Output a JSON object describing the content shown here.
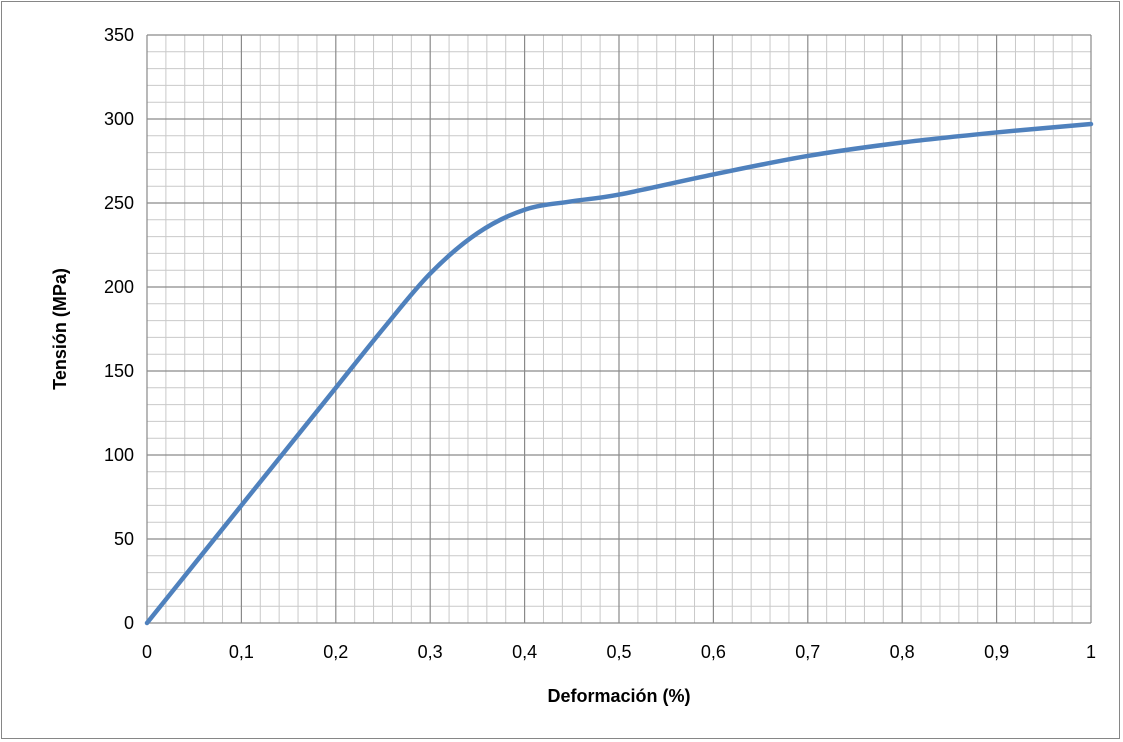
{
  "chart_data": {
    "type": "line",
    "title": "",
    "xlabel": "Deformación (%)",
    "ylabel": "Tensión (MPa)",
    "xlim": [
      0,
      1
    ],
    "ylim": [
      0,
      350
    ],
    "x_ticks": [
      0,
      0.1,
      0.2,
      0.3,
      0.4,
      0.5,
      0.6,
      0.7,
      0.8,
      0.9,
      1
    ],
    "x_tick_labels": [
      "0",
      "0,1",
      "0,2",
      "0,3",
      "0,4",
      "0,5",
      "0,6",
      "0,7",
      "0,8",
      "0,9",
      "1"
    ],
    "y_ticks": [
      0,
      50,
      100,
      150,
      200,
      250,
      300,
      350
    ],
    "y_tick_labels": [
      "0",
      "50",
      "100",
      "150",
      "200",
      "250",
      "300",
      "350"
    ],
    "grid": true,
    "minor_grid": true,
    "legend": "none",
    "series": [
      {
        "color": "#4f81bd",
        "x": [
          0,
          0.05,
          0.1,
          0.15,
          0.2,
          0.25,
          0.3,
          0.35,
          0.4,
          0.45,
          0.5,
          0.6,
          0.7,
          0.8,
          0.9,
          1.0
        ],
        "y": [
          0,
          35,
          70,
          105,
          140,
          175,
          208,
          232,
          246,
          251,
          255,
          267,
          278,
          286,
          292,
          297
        ]
      }
    ]
  }
}
